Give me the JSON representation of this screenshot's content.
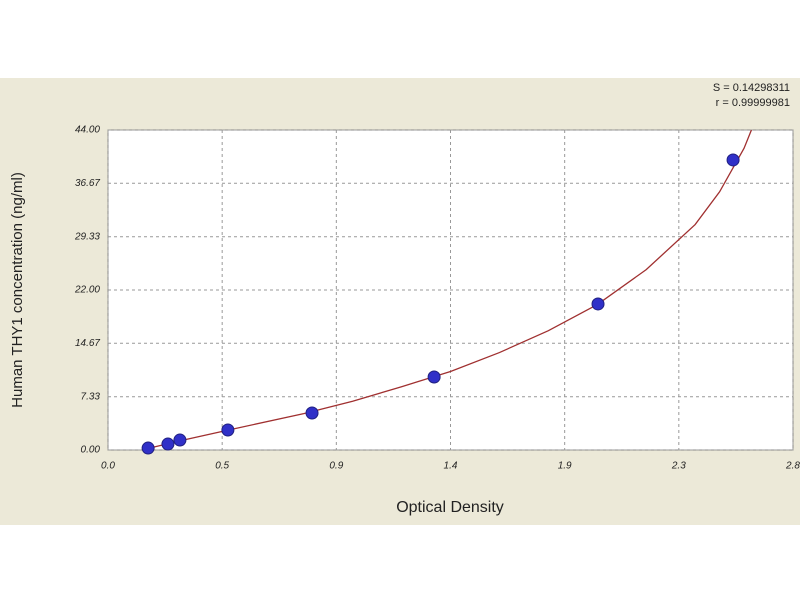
{
  "chart_data": {
    "type": "scatter",
    "annotations": [
      "S = 0.14298311",
      "r = 0.99999981"
    ],
    "xlabel": "Optical Density",
    "ylabel": "Human THY1 concentration (ng/ml)",
    "xlim": [
      0,
      2.8
    ],
    "xticks": [
      {
        "value": 0,
        "label": "0.0"
      },
      {
        "value": 0.4667,
        "label": "0.5"
      },
      {
        "value": 0.9333,
        "label": "0.9"
      },
      1.4,
      {
        "value": 1.8667,
        "label": "1.9"
      },
      {
        "value": 2.3333,
        "label": "2.3"
      },
      2.8
    ],
    "ylim": [
      0,
      44
    ],
    "yticks": [
      {
        "value": 0,
        "label": "0.00"
      },
      7.33,
      14.67,
      {
        "value": 22,
        "label": "22.00"
      },
      29.33,
      36.67,
      {
        "value": 44,
        "label": "44.00"
      }
    ],
    "grid": true,
    "series": [
      {
        "type": "scatter",
        "color": "#3030c8",
        "x": [
          0.164,
          0.245,
          0.294,
          0.49,
          0.834,
          1.333,
          2.003,
          2.555
        ],
        "values": [
          0.27,
          0.82,
          1.37,
          2.75,
          5.09,
          10.04,
          20.08,
          39.88
        ]
      },
      {
        "type": "line",
        "color": "#a03030",
        "x": [
          0.15,
          0.3,
          0.5,
          0.8,
          1.0,
          1.2,
          1.4,
          1.6,
          1.8,
          2.0,
          2.2,
          2.4,
          2.5,
          2.6,
          2.63
        ],
        "values": [
          0.1,
          1.3,
          2.8,
          5.0,
          6.7,
          8.7,
          10.8,
          13.4,
          16.4,
          20.0,
          24.8,
          31.0,
          35.5,
          41.5,
          44.0
        ]
      }
    ]
  }
}
